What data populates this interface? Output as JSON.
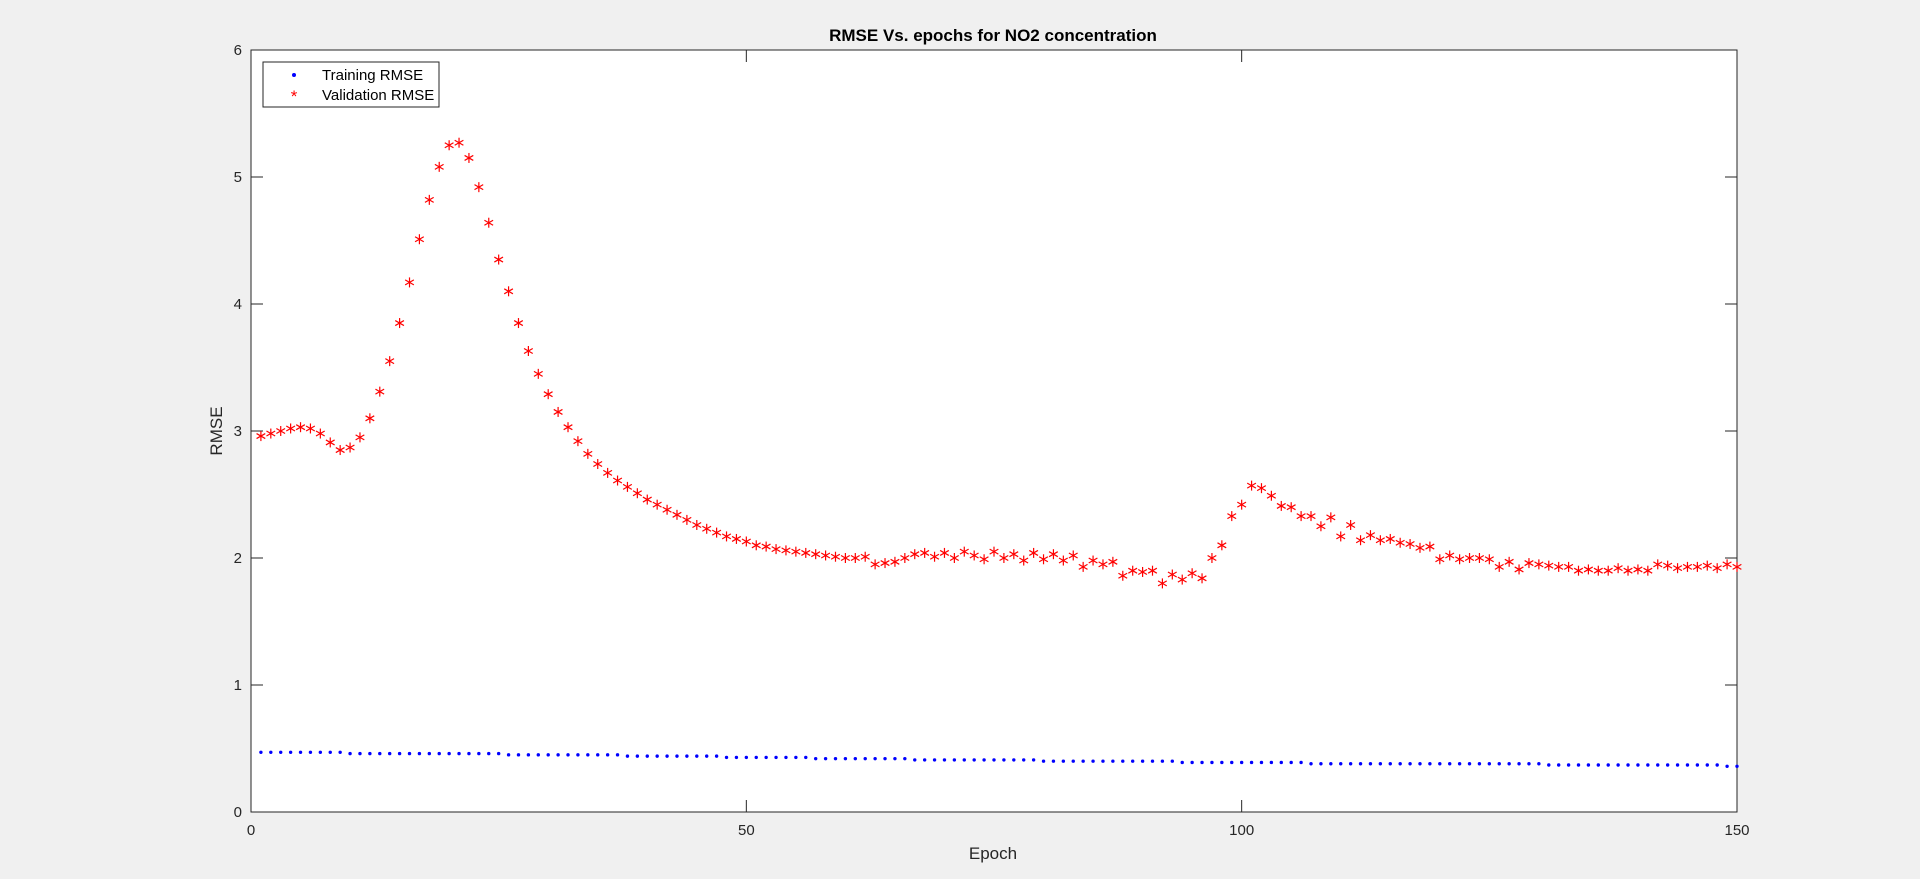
{
  "chart_data": {
    "type": "scatter",
    "title": "RMSE Vs. epochs for NO2 concentration",
    "xlabel": "Epoch",
    "ylabel": "RMSE",
    "xlim": [
      0,
      150
    ],
    "ylim": [
      0,
      6
    ],
    "xticks": [
      0,
      50,
      100,
      150
    ],
    "yticks": [
      0,
      1,
      2,
      3,
      4,
      5,
      6
    ],
    "xtick_labels": [
      "0",
      "50",
      "100",
      "150"
    ],
    "ytick_labels": [
      "0",
      "1",
      "2",
      "3",
      "4",
      "5",
      "6"
    ],
    "grid": false,
    "legend_position": "top-left",
    "x": [
      1,
      2,
      3,
      4,
      5,
      6,
      7,
      8,
      9,
      10,
      11,
      12,
      13,
      14,
      15,
      16,
      17,
      18,
      19,
      20,
      21,
      22,
      23,
      24,
      25,
      26,
      27,
      28,
      29,
      30,
      31,
      32,
      33,
      34,
      35,
      36,
      37,
      38,
      39,
      40,
      41,
      42,
      43,
      44,
      45,
      46,
      47,
      48,
      49,
      50,
      51,
      52,
      53,
      54,
      55,
      56,
      57,
      58,
      59,
      60,
      61,
      62,
      63,
      64,
      65,
      66,
      67,
      68,
      69,
      70,
      71,
      72,
      73,
      74,
      75,
      76,
      77,
      78,
      79,
      80,
      81,
      82,
      83,
      84,
      85,
      86,
      87,
      88,
      89,
      90,
      91,
      92,
      93,
      94,
      95,
      96,
      97,
      98,
      99,
      100,
      101,
      102,
      103,
      104,
      105,
      106,
      107,
      108,
      109,
      110,
      111,
      112,
      113,
      114,
      115,
      116,
      117,
      118,
      119,
      120,
      121,
      122,
      123,
      124,
      125,
      126,
      127,
      128,
      129,
      130,
      131,
      132,
      133,
      134,
      135,
      136,
      137,
      138,
      139,
      140,
      141,
      142,
      143,
      144,
      145,
      146,
      147,
      148,
      149,
      150
    ],
    "series": [
      {
        "name": "Training RMSE",
        "marker": "dot",
        "color": "#0000ff",
        "values": [
          0.47,
          0.47,
          0.47,
          0.47,
          0.47,
          0.47,
          0.47,
          0.47,
          0.47,
          0.46,
          0.46,
          0.46,
          0.46,
          0.46,
          0.46,
          0.46,
          0.46,
          0.46,
          0.46,
          0.46,
          0.46,
          0.46,
          0.46,
          0.46,
          0.46,
          0.45,
          0.45,
          0.45,
          0.45,
          0.45,
          0.45,
          0.45,
          0.45,
          0.45,
          0.45,
          0.45,
          0.45,
          0.44,
          0.44,
          0.44,
          0.44,
          0.44,
          0.44,
          0.44,
          0.44,
          0.44,
          0.44,
          0.43,
          0.43,
          0.43,
          0.43,
          0.43,
          0.43,
          0.43,
          0.43,
          0.43,
          0.42,
          0.42,
          0.42,
          0.42,
          0.42,
          0.42,
          0.42,
          0.42,
          0.42,
          0.42,
          0.41,
          0.41,
          0.41,
          0.41,
          0.41,
          0.41,
          0.41,
          0.41,
          0.41,
          0.41,
          0.41,
          0.41,
          0.41,
          0.4,
          0.4,
          0.4,
          0.4,
          0.4,
          0.4,
          0.4,
          0.4,
          0.4,
          0.4,
          0.4,
          0.4,
          0.4,
          0.4,
          0.39,
          0.39,
          0.39,
          0.39,
          0.39,
          0.39,
          0.39,
          0.39,
          0.39,
          0.39,
          0.39,
          0.39,
          0.39,
          0.38,
          0.38,
          0.38,
          0.38,
          0.38,
          0.38,
          0.38,
          0.38,
          0.38,
          0.38,
          0.38,
          0.38,
          0.38,
          0.38,
          0.38,
          0.38,
          0.38,
          0.38,
          0.38,
          0.38,
          0.38,
          0.38,
          0.38,
          0.38,
          0.37,
          0.37,
          0.37,
          0.37,
          0.37,
          0.37,
          0.37,
          0.37,
          0.37,
          0.37,
          0.37,
          0.37,
          0.37,
          0.37,
          0.37,
          0.37,
          0.37,
          0.37,
          0.36,
          0.36
        ]
      },
      {
        "name": "Validation RMSE",
        "marker": "asterisk",
        "color": "#ff0000",
        "values": [
          2.96,
          2.98,
          3.0,
          3.02,
          3.03,
          3.02,
          2.98,
          2.91,
          2.85,
          2.87,
          2.95,
          3.1,
          3.31,
          3.55,
          3.85,
          4.17,
          4.51,
          4.82,
          5.08,
          5.25,
          5.27,
          5.15,
          4.92,
          4.64,
          4.35,
          4.1,
          3.85,
          3.63,
          3.45,
          3.29,
          3.15,
          3.03,
          2.92,
          2.82,
          2.74,
          2.67,
          2.61,
          2.56,
          2.51,
          2.46,
          2.42,
          2.38,
          2.34,
          2.3,
          2.26,
          2.23,
          2.2,
          2.17,
          2.15,
          2.13,
          2.1,
          2.09,
          2.07,
          2.06,
          2.05,
          2.04,
          2.03,
          2.02,
          2.01,
          2.0,
          2.0,
          2.01,
          1.95,
          1.96,
          1.97,
          2.0,
          2.03,
          2.04,
          2.01,
          2.04,
          2.0,
          2.05,
          2.02,
          1.99,
          2.05,
          2.0,
          2.03,
          1.98,
          2.04,
          1.99,
          2.03,
          1.98,
          2.02,
          1.93,
          1.98,
          1.95,
          1.97,
          1.86,
          1.9,
          1.89,
          1.9,
          1.8,
          1.87,
          1.83,
          1.88,
          1.84,
          2.0,
          2.1,
          2.33,
          2.42,
          2.57,
          2.55,
          2.49,
          2.41,
          2.4,
          2.33,
          2.33,
          2.25,
          2.32,
          2.17,
          2.26,
          2.14,
          2.18,
          2.14,
          2.15,
          2.12,
          2.11,
          2.08,
          2.09,
          1.99,
          2.02,
          1.99,
          2.0,
          2.0,
          1.99,
          1.93,
          1.97,
          1.91,
          1.96,
          1.95,
          1.94,
          1.93,
          1.93,
          1.9,
          1.91,
          1.9,
          1.9,
          1.92,
          1.9,
          1.91,
          1.9,
          1.95,
          1.94,
          1.92,
          1.93,
          1.93,
          1.94,
          1.92,
          1.95,
          1.93
        ]
      }
    ]
  }
}
